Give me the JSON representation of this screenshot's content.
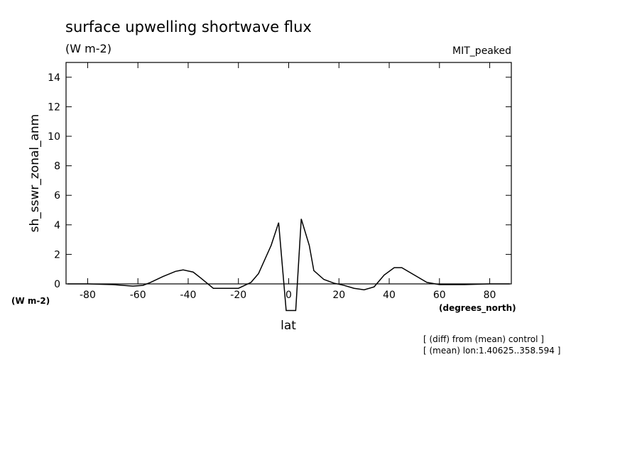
{
  "chart_data": {
    "type": "line",
    "title": "surface upwelling shortwave flux",
    "subtitle": "(W m-2)",
    "dataset_label": "MIT_peaked",
    "ylabel": "sh_sswr_zonal_anm",
    "yunits": "(W m-2)",
    "xunits": "(degrees_north)",
    "xlabel": "lat",
    "notes": [
      "[ (diff) from (mean) control ]",
      "[ (mean) lon:1.40625..358.594 ]"
    ],
    "x": [
      -88,
      -80,
      -70,
      -62,
      -58,
      -55,
      -50,
      -45,
      -42,
      -38,
      -35,
      -30,
      -25,
      -20,
      -15,
      -12,
      -7,
      -4,
      -1,
      2.8,
      5,
      8.2,
      10,
      14,
      18,
      22,
      26,
      30,
      34,
      38,
      42,
      45,
      50,
      55,
      60,
      70,
      80,
      88
    ],
    "series": [
      {
        "name": "sh_sswr_zonal_anm",
        "color": "#000000",
        "values": [
          0,
          0,
          -0.05,
          -0.15,
          -0.1,
          0.1,
          0.5,
          0.85,
          0.95,
          0.8,
          0.4,
          -0.3,
          -0.3,
          -0.3,
          0.1,
          0.7,
          2.6,
          4.15,
          -1.8,
          -1.8,
          4.4,
          2.6,
          0.9,
          0.3,
          0.05,
          -0.1,
          -0.3,
          -0.4,
          -0.2,
          0.6,
          1.1,
          1.1,
          0.6,
          0.1,
          -0.05,
          -0.05,
          0,
          0
        ]
      }
    ],
    "xlim": [
      -88.6,
      88.6
    ],
    "ylim": [
      0,
      15
    ],
    "xticks": [
      -80,
      -60,
      -40,
      -20,
      0,
      20,
      40,
      60,
      80
    ],
    "yticks": [
      0,
      2,
      4,
      6,
      8,
      10,
      12,
      14
    ]
  }
}
